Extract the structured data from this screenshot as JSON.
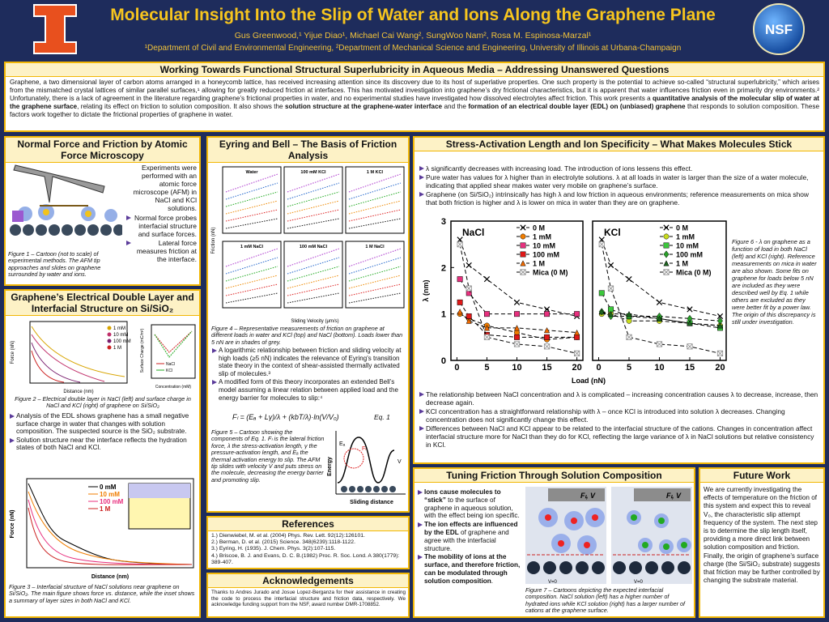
{
  "header": {
    "title": "Molecular Insight Into the Slip of Water and Ions Along the Graphene Plane",
    "authors": "Gus Greenwood,¹ Yijue Diao¹, Michael Cai Wang², SungWoo Nam², Rosa M. Espinosa-Marzal¹",
    "affiliations": "¹Department of Civil and Environmental Engineering, ²Department of Mechanical Science and Engineering, University of Illinois at Urbana-Champaign",
    "logo_text": "NSF"
  },
  "intro": {
    "title": "Working Towards Functional Structural Superlubricity in Aqueous Media – Addressing Unanswered Questions",
    "text": [
      "Graphene, a two dimensional layer of carbon atoms arranged in a honeycomb lattice, has received increasing attention since its discovery due to its host of superlative properties. One such property is the potential to achieve so-called “structural superlubricity,” which arises from the mismatched crystal lattices of similar parallel surfaces,¹ allowing for greatly reduced friction at interfaces. This has motivated investigation into graphene’s dry frictional characteristics, but it is apparent that water influences friction even in primarily dry environments.² Unfortunately, there is a lack of agreement in the literature regarding graphene’s frictional properties in water, and no experimental studies have investigated how dissolved electrolytes affect friction. This work presents a ",
      {
        "text": "quantitative analysis of the molecular slip of water at the graphene surface",
        "bold": true
      },
      ", relating its effect on friction to solution composition. It also shows the ",
      {
        "text": "solution structure at the graphene-water interface",
        "bold": true
      },
      " and the ",
      {
        "text": "formation of an electrical double layer (EDL) on (unbiased) graphene",
        "bold": true
      },
      " that responds to solution composition. These factors work together to dictate the frictional properties of graphene in water."
    ]
  },
  "afm": {
    "title": "Normal Force and Friction by Atomic Force Microscopy",
    "text": "Experiments were performed with an atomic force microscope (AFM) in NaCl and KCl solutions.",
    "bullets": [
      "Normal force probes interfacial structure and surface forces.",
      "Lateral force measures friction at the interface."
    ],
    "caption": "Figure 1 – Cartoon (not to scale) of experimental methods. The AFM tip approaches and slides on graphene surrounded by water and ions."
  },
  "edl": {
    "title": "Graphene’s Electrical Double Layer and Interfacial Structure on Si/SiO₂",
    "fig2": {
      "legend": [
        "1 mM",
        "10 mM",
        "100 mM",
        "1 M"
      ],
      "y_label": "Force (nN)",
      "x_label": "Distance (nm)",
      "inset_y_label": "Surface Charge (mC/m²)",
      "inset_x_label": "Concentration (mM)",
      "inset_legend": [
        "NaCl",
        "KCl"
      ]
    },
    "caption2": "Figure 2 – Electrical double layer in NaCl (left) and surface charge in NaCl and KCl (right) of graphene on Si/SiO₂",
    "bullets": [
      "Analysis of the EDL shows graphene has a small negative surface charge in water that changes with solution composition. The suspected source is the SiO₂ substrate.",
      "Solution structure near the interface reflects the hydration states of both NaCl and KCl."
    ],
    "fig3": {
      "legend": [
        "0 mM",
        "10 mM",
        "100 mM",
        "1 M"
      ],
      "y_label": "Force (nN)",
      "x_label": "Distance (nm)"
    },
    "caption3": "Figure 3 – Interfacial structure of NaCl solutions near graphene on Si/SiO₂. The main figure shows force vs. distance, while the inset shows a summary of layer sizes in both NaCl and KCl."
  },
  "eyring": {
    "title": "Eyring and Bell – The Basis of Friction Analysis",
    "fig4": {
      "panels": [
        "Water",
        "100 mM KCl",
        "1 M KCl",
        "1 mM NaCl",
        "100 mM NaCl",
        "1 M NaCl"
      ],
      "y_label": "Friction (nN)",
      "x_label": "Sliding Velocity (μm/s)"
    },
    "caption4": "Figure 4 – Representative measurements of friction on graphene at different loads in water and KCl (top) and NaCl (bottom). Loads lower than 5 nN are in shades of grey.",
    "bullets": [
      "A logarithmic relationship between friction and sliding velocity at high loads (≥5 nN) indicates the relevance of Eyring’s transition state theory in the context of shear-assisted thermally activated slip of molecules.³",
      "A modified form of this theory incorporates an extended Bell’s model assuming a linear relation between applied load and the energy barrier for molecules to slip:⁴"
    ],
    "equation": "Fₗ = (Eₐ + Lγ)/λ + (kbT/λ)·ln(V/V₀)",
    "equation_label": "Eq. 1",
    "fig5": {
      "y_label": "Energy",
      "x_label": "Sliding distance",
      "labels": [
        "Eₐ",
        "Fₗ",
        "V"
      ]
    },
    "caption5": "Figure 5 – Cartoon showing the components of Eq. 1. Fₗ is the lateral friction force, λ the stress-activation length, γ the pressure-activation length, and Eₐ the thermal activation energy to slip. The AFM tip slides with velocity V and puts stress on the molecule, decreasing the energy barrier and promoting slip."
  },
  "references": {
    "title": "References",
    "items": [
      "1.) Dienwiebel, M. et al. (2004) Phys. Rev. Lett. 92(12):126101.",
      "2.) Berman, D. et al. (2015) Science. 348(6239):1118-1122.",
      "3.) Eyring, H. (1935). J. Chem. Phys. 3(2):107-115.",
      "4.) Briscoe, B. J. and Evans, D. C. B.(1982) Proc. R. Soc. Lond. A 380(1779): 389-407."
    ]
  },
  "acknowledgements": {
    "title": "Acknowledgements",
    "text": "Thanks to Andres Jurado and Josue Lopez-Berganza for their assistance in creating the code to process the interfacial structure and friction data, respectively. We acknowledge funding support from the NSF, award number DMR-1708852."
  },
  "stress": {
    "title": "Stress-Activation Length and Ion Specificity – What Makes Molecules Stick",
    "bullets_top": [
      "λ significantly decreases with increasing load. The introduction of ions lessens this effect.",
      "Pure water has values for λ higher than in electrolyte solutions. λ at all loads in water is larger than the size of a water molecule, indicating that applied shear makes water very mobile on graphene’s surface.",
      "Graphene (on Si/SiO₂) intrinsically has high λ and low friction in aqueous environments; reference measurements on mica show that both friction is higher and λ is lower on mica in water than they are on graphene."
    ],
    "caption": "Figure 6 - λ on graphene as a function of load in both NaCl (left) and KCl (right). Reference measurements on mica in water are also shown. Some fits on graphene for loads below 5 nN are included as they were described well by Eq. 1 while others are excluded as they were better fit by a power law. The origin of this discrepancy is still under investigation.",
    "bullets_bottom": [
      "The relationship between NaCl concentration and λ is complicated – increasing concentration causes λ to decrease, increase, then decrease again.",
      "KCl concentration has a straightforward relationship with λ – once KCl is introduced into solution λ decreases. Changing concentration does not significantly change this effect.",
      "Differences between NaCl and KCl appear to be related to the interfacial structure of the cations. Changes in concentration affect interfacial structure more for NaCl than they do for KCl, reflecting the large variance of λ in NaCl solutions but relative consistency in KCl."
    ]
  },
  "tuning": {
    "title": "Tuning Friction Through Solution Composition",
    "bullets": [
      [
        {
          "text": "Ions cause molecules to “stick”",
          "bold": true
        },
        " to the surface of graphene in aqueous solution, with the effect being ion specific."
      ],
      [
        {
          "text": "The ion effects are influenced by the EDL",
          "bold": true
        },
        " of graphene and agree with the interfacial structure."
      ],
      [
        {
          "text": "The mobility of ions at the surface, and therefore friction, can be modulated through solution composition",
          "bold": true
        },
        "."
      ]
    ],
    "fig_labels": [
      "Fₗ, V",
      "V=0",
      "Fₗ, V",
      "V=0"
    ],
    "caption": "Figure 7 – Cartoons depicting the expected interfacial composition. NaCl solution (left) has a higher number of hydrated ions while KCl solution (right) has a larger number of cations at the graphene surface."
  },
  "future": {
    "title": "Future Work",
    "text": "We are currently investigating the effects of temperature on the friction of this system and expect this to reveal V₀, the characteristic slip attempt frequency of the system. The next step is to determine the slip length itself, providing a more direct link between solution composition and friction. Finally, the origin of graphene’s surface charge (the Si/SiO₂ substrate) suggests that friction may be further controlled by changing the substrate material."
  },
  "chart_data": [
    {
      "type": "line",
      "title": "NaCl",
      "y_label": "λ (nm)",
      "x_label": "Load (nN)",
      "x": [
        0.5,
        2,
        5,
        10,
        15,
        20
      ],
      "xlim": [
        -1,
        21
      ],
      "ylim": [
        0,
        3
      ],
      "xticks": [
        0,
        5,
        10,
        15,
        20
      ],
      "yticks": [
        0,
        1,
        2,
        3
      ],
      "legend": "upper right",
      "line_color": "#000000",
      "line_dash": true,
      "series": [
        {
          "name": "0 M",
          "color": "#000000",
          "marker": "x",
          "values": [
            2.6,
            2.05,
            1.75,
            1.25,
            1.1,
            0.95
          ]
        },
        {
          "name": "1 mM",
          "color": "#f07d00",
          "marker": "circle",
          "values": [
            1.0,
            0.9,
            0.75,
            0.6,
            0.45,
            0.5
          ]
        },
        {
          "name": "10 mM",
          "color": "#e8307e",
          "marker": "square",
          "values": [
            1.75,
            1.45,
            1.0,
            1.0,
            1.0,
            1.0
          ]
        },
        {
          "name": "100 mM",
          "color": "#e01818",
          "marker": "square",
          "values": [
            1.25,
            0.95,
            0.55,
            0.5,
            0.5,
            0.5
          ]
        },
        {
          "name": "1 M",
          "color": "#f06a00",
          "marker": "triangle",
          "values": [
            1.05,
            0.85,
            0.7,
            0.7,
            0.65,
            0.6
          ]
        },
        {
          "name": "Mica (0 M)",
          "color": "#8c8c8c",
          "marker": "box-x",
          "values": [
            2.5,
            1.55,
            0.5,
            0.35,
            0.3,
            0.15
          ]
        }
      ]
    },
    {
      "type": "line",
      "title": "KCl",
      "x": [
        0.5,
        2,
        5,
        10,
        15,
        20
      ],
      "xlim": [
        -1,
        21
      ],
      "ylim": [
        0,
        3
      ],
      "xticks": [
        0,
        5,
        10,
        15,
        20
      ],
      "legend": "upper right",
      "line_color": "#000000",
      "line_dash": true,
      "series": [
        {
          "name": "0 M",
          "color": "#000000",
          "marker": "x",
          "values": [
            2.6,
            2.05,
            1.75,
            1.25,
            1.1,
            0.95
          ]
        },
        {
          "name": "1 mM",
          "color": "#c8dc1e",
          "marker": "circle",
          "values": [
            1.0,
            1.0,
            0.85,
            0.85,
            0.8,
            0.75
          ]
        },
        {
          "name": "10 mM",
          "color": "#3cc83c",
          "marker": "square",
          "values": [
            1.45,
            1.1,
            0.95,
            0.9,
            0.8,
            0.7
          ]
        },
        {
          "name": "100 mM",
          "color": "#2aa02a",
          "marker": "diamond",
          "values": [
            1.05,
            0.95,
            0.95,
            0.95,
            0.9,
            0.85
          ]
        },
        {
          "name": "1 M",
          "color": "#1e6420",
          "marker": "triangle",
          "values": [
            1.05,
            1.0,
            1.0,
            0.9,
            0.8,
            0.75
          ]
        },
        {
          "name": "Mica (0 M)",
          "color": "#8c8c8c",
          "marker": "box-x",
          "values": [
            2.5,
            1.55,
            0.5,
            0.35,
            0.3,
            0.15
          ]
        }
      ]
    }
  ]
}
